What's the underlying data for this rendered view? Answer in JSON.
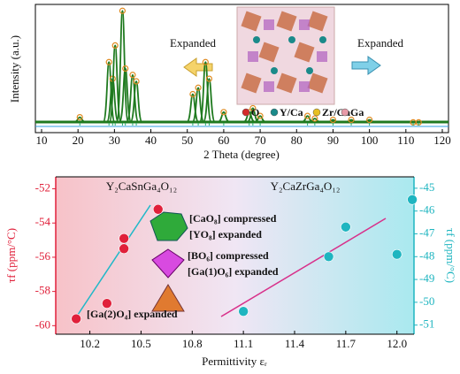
{
  "chart_data": [
    {
      "type": "xrd",
      "xlabel": "2 Theta (degree)",
      "ylabel": "Intensity (a.u.)",
      "xlim": [
        10,
        120
      ],
      "xticks": [
        10,
        20,
        30,
        40,
        50,
        60,
        70,
        80,
        90,
        100,
        110,
        120
      ],
      "ylim": [
        0,
        100
      ],
      "color": "#1f7a1f",
      "x": [
        20.5,
        28.5,
        29.5,
        30.2,
        32.2,
        33.0,
        35.0,
        36.0,
        51.5,
        53.0,
        55.0,
        56.0,
        60.0,
        67.0,
        68.0,
        70.0,
        83.0,
        85.0,
        90.0,
        95.0,
        100.0,
        112.0,
        113.5
      ],
      "values": [
        12,
        55,
        42,
        68,
        95,
        50,
        45,
        40,
        30,
        35,
        55,
        42,
        16,
        16,
        19,
        13,
        13,
        11,
        10,
        10,
        10,
        8,
        8
      ],
      "annotations": [
        "Expanded",
        "Expanded"
      ],
      "legend": [
        {
          "name": "O",
          "color": "#d42a2a"
        },
        {
          "name": "Y/Ca",
          "color": "#1a8a8a"
        },
        {
          "name": "Zr/Ga",
          "color": "#e8c020"
        },
        {
          "name": "Ga",
          "color": "#e89aa8"
        }
      ]
    },
    {
      "type": "scatter",
      "xlabel": "Permittivity εᵣ",
      "ylabel": "τf (ppm/°C)",
      "y2label": "τf (ppm/°C)",
      "xlim": [
        10.0,
        12.1
      ],
      "xticks": [
        10.2,
        10.5,
        10.8,
        11.1,
        11.4,
        11.7,
        {
          "value": 12.0,
          "label": "12.0"
        }
      ],
      "ylim": [
        -60.5,
        -51.3
      ],
      "yticks": [
        -60,
        -58,
        -56,
        -54,
        -52
      ],
      "y2lim": [
        -51.4,
        -44.5
      ],
      "y2ticks": [
        -51,
        -50,
        -49,
        -48,
        -47,
        -46,
        -45
      ],
      "series": [
        {
          "x": [
            10.12,
            10.3,
            10.4,
            10.4,
            10.6
          ],
          "values": [
            -59.6,
            -58.7,
            -55.5,
            -54.9,
            -53.2
          ],
          "color": "#e0203a"
        },
        {
          "x": [
            11.1,
            11.6,
            11.7,
            12.0,
            12.09
          ],
          "values": [
            -50.4,
            -48.0,
            -46.7,
            -47.9,
            -45.5
          ],
          "color": "#1fb5c0",
          "axis": "y2"
        }
      ],
      "labels": [
        "Y₂CaSnGa₄O₁₂",
        "Y₂CaZrGa₄O₁₂"
      ],
      "annotations": [
        "[CaO₈] compressed",
        "[YO₈] expanded",
        "[BO₆] compressed",
        "[Ga(1)O₆] expanded",
        "[Ga(2)O₄] expanded"
      ]
    }
  ]
}
